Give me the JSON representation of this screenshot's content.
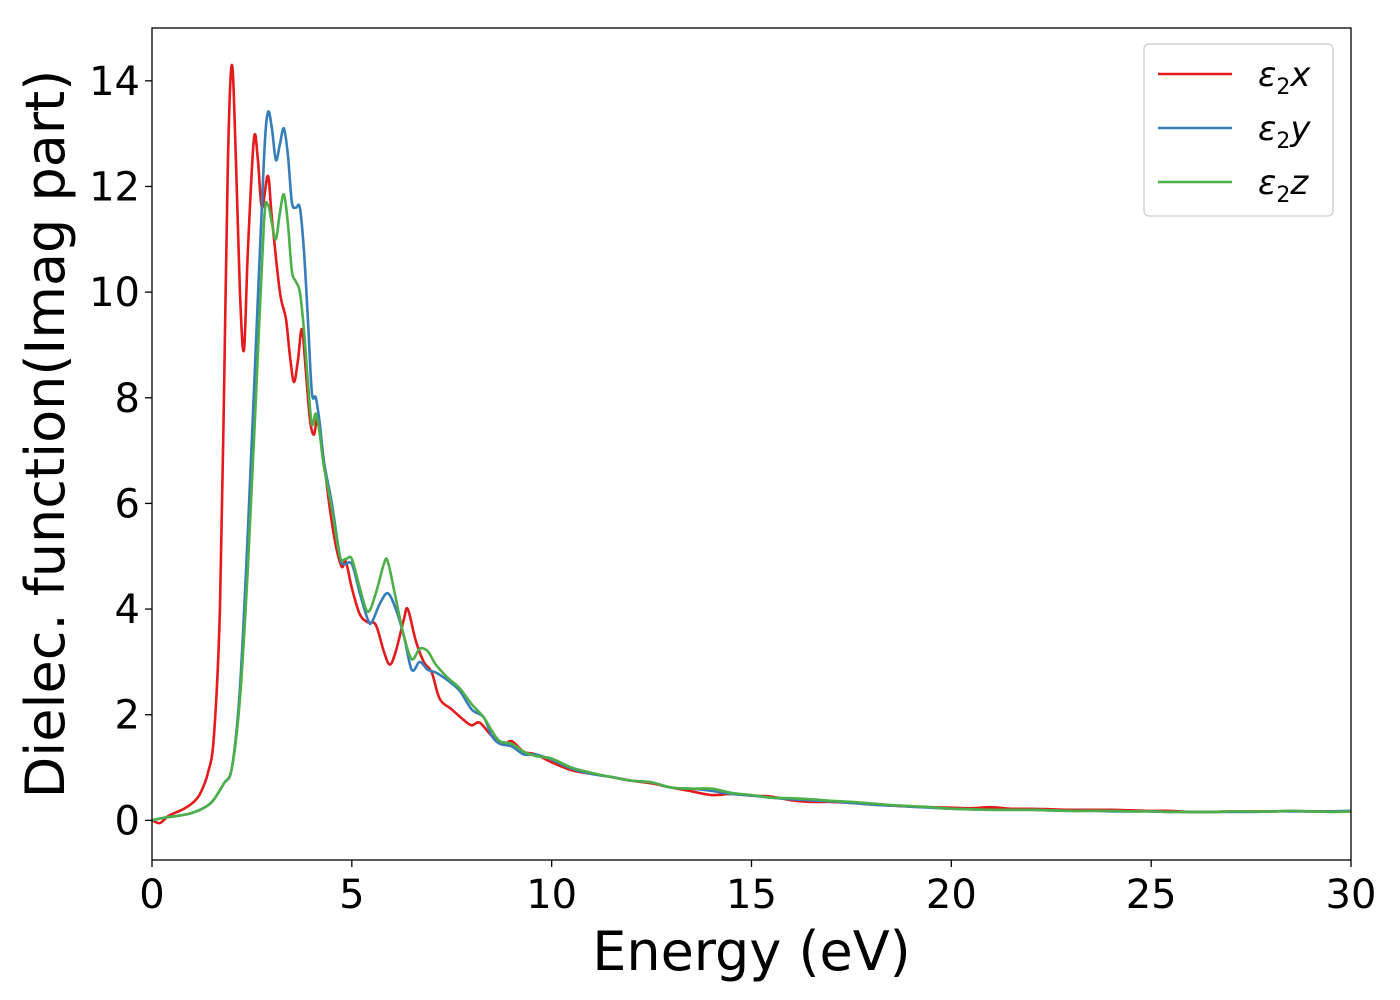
{
  "chart_data": {
    "type": "line",
    "title": "",
    "xlabel": "Energy (eV)",
    "ylabel": "Dielec. function(Imag part)",
    "xlim": [
      0,
      30
    ],
    "ylim": [
      -0.75,
      15
    ],
    "xticks": [
      0,
      5,
      10,
      15,
      20,
      25,
      30
    ],
    "yticks": [
      0,
      2,
      4,
      6,
      8,
      10,
      12,
      14
    ],
    "grid": false,
    "legend_position": "top-right",
    "series": [
      {
        "name": "ε2x",
        "legend": {
          "main": "ε",
          "sub": "2",
          "suffix": "x"
        },
        "color": "#e41a1c",
        "points": [
          [
            0,
            0
          ],
          [
            0.2,
            -0.05
          ],
          [
            0.4,
            0.08
          ],
          [
            0.6,
            0.15
          ],
          [
            0.8,
            0.22
          ],
          [
            1.0,
            0.32
          ],
          [
            1.2,
            0.5
          ],
          [
            1.4,
            0.9
          ],
          [
            1.55,
            1.6
          ],
          [
            1.7,
            4
          ],
          [
            1.8,
            8
          ],
          [
            1.9,
            12.5
          ],
          [
            2.0,
            14.3
          ],
          [
            2.1,
            12.5
          ],
          [
            2.2,
            10
          ],
          [
            2.3,
            8.9
          ],
          [
            2.4,
            10.8
          ],
          [
            2.55,
            12.9
          ],
          [
            2.65,
            12.5
          ],
          [
            2.75,
            11.6
          ],
          [
            2.9,
            12.2
          ],
          [
            3.0,
            11.4
          ],
          [
            3.2,
            10
          ],
          [
            3.35,
            9.5
          ],
          [
            3.45,
            8.8
          ],
          [
            3.55,
            8.3
          ],
          [
            3.65,
            8.7
          ],
          [
            3.75,
            9.3
          ],
          [
            3.85,
            8.5
          ],
          [
            3.95,
            7.6
          ],
          [
            4.05,
            7.3
          ],
          [
            4.15,
            7.6
          ],
          [
            4.3,
            6.8
          ],
          [
            4.45,
            5.9
          ],
          [
            4.6,
            5.2
          ],
          [
            4.75,
            4.8
          ],
          [
            4.85,
            4.9
          ],
          [
            5.0,
            4.4
          ],
          [
            5.2,
            3.9
          ],
          [
            5.4,
            3.75
          ],
          [
            5.6,
            3.7
          ],
          [
            5.8,
            3.2
          ],
          [
            5.95,
            2.95
          ],
          [
            6.1,
            3.2
          ],
          [
            6.3,
            3.8
          ],
          [
            6.4,
            4.0
          ],
          [
            6.6,
            3.4
          ],
          [
            6.8,
            3.0
          ],
          [
            7.0,
            2.8
          ],
          [
            7.2,
            2.3
          ],
          [
            7.5,
            2.1
          ],
          [
            7.8,
            1.9
          ],
          [
            8.0,
            1.8
          ],
          [
            8.2,
            1.85
          ],
          [
            8.5,
            1.6
          ],
          [
            8.8,
            1.45
          ],
          [
            9.0,
            1.5
          ],
          [
            9.3,
            1.3
          ],
          [
            9.6,
            1.25
          ],
          [
            10.0,
            1.1
          ],
          [
            10.5,
            0.95
          ],
          [
            11.0,
            0.88
          ],
          [
            11.5,
            0.82
          ],
          [
            12.0,
            0.75
          ],
          [
            12.5,
            0.7
          ],
          [
            13.0,
            0.62
          ],
          [
            13.5,
            0.55
          ],
          [
            14.0,
            0.48
          ],
          [
            14.5,
            0.5
          ],
          [
            15.0,
            0.47
          ],
          [
            15.5,
            0.45
          ],
          [
            16.0,
            0.38
          ],
          [
            16.5,
            0.35
          ],
          [
            17.0,
            0.35
          ],
          [
            17.5,
            0.33
          ],
          [
            18.0,
            0.3
          ],
          [
            18.5,
            0.28
          ],
          [
            19.0,
            0.26
          ],
          [
            19.5,
            0.25
          ],
          [
            20.0,
            0.24
          ],
          [
            20.5,
            0.23
          ],
          [
            21.0,
            0.25
          ],
          [
            21.5,
            0.22
          ],
          [
            22.0,
            0.22
          ],
          [
            22.5,
            0.21
          ],
          [
            23.0,
            0.2
          ],
          [
            23.5,
            0.2
          ],
          [
            24.0,
            0.2
          ],
          [
            24.5,
            0.19
          ],
          [
            25.0,
            0.18
          ],
          [
            25.5,
            0.18
          ],
          [
            26.0,
            0.16
          ],
          [
            26.5,
            0.16
          ],
          [
            27.0,
            0.17
          ],
          [
            27.5,
            0.17
          ],
          [
            28.0,
            0.17
          ],
          [
            28.5,
            0.18
          ],
          [
            29.0,
            0.17
          ],
          [
            29.5,
            0.17
          ],
          [
            30.0,
            0.17
          ]
        ]
      },
      {
        "name": "ε2y",
        "legend": {
          "main": "ε",
          "sub": "2",
          "suffix": "y"
        },
        "color": "#377eb8",
        "points": [
          [
            0,
            0
          ],
          [
            0.3,
            0.05
          ],
          [
            0.6,
            0.08
          ],
          [
            0.9,
            0.12
          ],
          [
            1.2,
            0.2
          ],
          [
            1.5,
            0.35
          ],
          [
            1.8,
            0.7
          ],
          [
            2.0,
            1.0
          ],
          [
            2.2,
            2.5
          ],
          [
            2.4,
            5.5
          ],
          [
            2.6,
            9
          ],
          [
            2.8,
            12.5
          ],
          [
            2.9,
            13.4
          ],
          [
            3.0,
            13.1
          ],
          [
            3.1,
            12.5
          ],
          [
            3.2,
            12.8
          ],
          [
            3.3,
            13.1
          ],
          [
            3.4,
            12.6
          ],
          [
            3.5,
            11.7
          ],
          [
            3.6,
            11.6
          ],
          [
            3.7,
            11.6
          ],
          [
            3.8,
            10.8
          ],
          [
            3.9,
            9.5
          ],
          [
            4.0,
            8.1
          ],
          [
            4.1,
            8.0
          ],
          [
            4.2,
            7.5
          ],
          [
            4.3,
            6.8
          ],
          [
            4.5,
            6.0
          ],
          [
            4.7,
            5.0
          ],
          [
            4.8,
            4.85
          ],
          [
            5.0,
            4.85
          ],
          [
            5.2,
            4.3
          ],
          [
            5.4,
            3.8
          ],
          [
            5.5,
            3.75
          ],
          [
            5.7,
            4.1
          ],
          [
            5.9,
            4.3
          ],
          [
            6.1,
            4.0
          ],
          [
            6.3,
            3.5
          ],
          [
            6.5,
            2.85
          ],
          [
            6.7,
            3.0
          ],
          [
            6.9,
            2.85
          ],
          [
            7.1,
            2.8
          ],
          [
            7.4,
            2.65
          ],
          [
            7.7,
            2.45
          ],
          [
            8.0,
            2.1
          ],
          [
            8.3,
            1.95
          ],
          [
            8.5,
            1.6
          ],
          [
            8.7,
            1.45
          ],
          [
            9.0,
            1.4
          ],
          [
            9.3,
            1.25
          ],
          [
            9.6,
            1.25
          ],
          [
            10.0,
            1.15
          ],
          [
            10.5,
            0.98
          ],
          [
            11.0,
            0.88
          ],
          [
            11.5,
            0.82
          ],
          [
            12.0,
            0.75
          ],
          [
            12.5,
            0.72
          ],
          [
            13.0,
            0.62
          ],
          [
            13.5,
            0.6
          ],
          [
            14.0,
            0.56
          ],
          [
            14.5,
            0.5
          ],
          [
            15.0,
            0.47
          ],
          [
            15.5,
            0.43
          ],
          [
            16.0,
            0.4
          ],
          [
            16.5,
            0.38
          ],
          [
            17.0,
            0.36
          ],
          [
            17.5,
            0.33
          ],
          [
            18.0,
            0.3
          ],
          [
            18.5,
            0.28
          ],
          [
            19.0,
            0.26
          ],
          [
            19.5,
            0.24
          ],
          [
            20.0,
            0.22
          ],
          [
            20.5,
            0.21
          ],
          [
            21.0,
            0.2
          ],
          [
            21.5,
            0.2
          ],
          [
            22.0,
            0.2
          ],
          [
            22.5,
            0.19
          ],
          [
            23.0,
            0.18
          ],
          [
            23.5,
            0.18
          ],
          [
            24.0,
            0.17
          ],
          [
            24.5,
            0.17
          ],
          [
            25.0,
            0.17
          ],
          [
            25.5,
            0.16
          ],
          [
            26.0,
            0.16
          ],
          [
            26.5,
            0.16
          ],
          [
            27.0,
            0.16
          ],
          [
            27.5,
            0.16
          ],
          [
            28.0,
            0.17
          ],
          [
            28.5,
            0.17
          ],
          [
            29.0,
            0.17
          ],
          [
            29.5,
            0.17
          ],
          [
            30.0,
            0.18
          ]
        ]
      },
      {
        "name": "ε2z",
        "legend": {
          "main": "ε",
          "sub": "2",
          "suffix": "z"
        },
        "color": "#4daf4a",
        "points": [
          [
            0,
            0
          ],
          [
            0.3,
            0.05
          ],
          [
            0.6,
            0.08
          ],
          [
            0.9,
            0.12
          ],
          [
            1.2,
            0.2
          ],
          [
            1.5,
            0.35
          ],
          [
            1.8,
            0.7
          ],
          [
            2.0,
            1.0
          ],
          [
            2.2,
            2.3
          ],
          [
            2.4,
            4.8
          ],
          [
            2.6,
            8
          ],
          [
            2.8,
            11.3
          ],
          [
            2.9,
            11.65
          ],
          [
            3.0,
            11.3
          ],
          [
            3.1,
            11.0
          ],
          [
            3.2,
            11.5
          ],
          [
            3.3,
            11.85
          ],
          [
            3.4,
            11.3
          ],
          [
            3.5,
            10.4
          ],
          [
            3.6,
            10.2
          ],
          [
            3.7,
            10.0
          ],
          [
            3.8,
            9.3
          ],
          [
            3.9,
            8.3
          ],
          [
            4.0,
            7.5
          ],
          [
            4.1,
            7.7
          ],
          [
            4.2,
            7.3
          ],
          [
            4.3,
            6.7
          ],
          [
            4.5,
            5.9
          ],
          [
            4.7,
            5.0
          ],
          [
            4.85,
            4.95
          ],
          [
            5.0,
            4.95
          ],
          [
            5.2,
            4.4
          ],
          [
            5.4,
            3.95
          ],
          [
            5.6,
            4.3
          ],
          [
            5.8,
            4.85
          ],
          [
            5.9,
            4.9
          ],
          [
            6.1,
            4.2
          ],
          [
            6.3,
            3.5
          ],
          [
            6.5,
            3.05
          ],
          [
            6.7,
            3.25
          ],
          [
            6.9,
            3.2
          ],
          [
            7.1,
            2.95
          ],
          [
            7.4,
            2.7
          ],
          [
            7.7,
            2.5
          ],
          [
            8.0,
            2.2
          ],
          [
            8.3,
            1.95
          ],
          [
            8.5,
            1.7
          ],
          [
            8.7,
            1.5
          ],
          [
            9.0,
            1.45
          ],
          [
            9.3,
            1.3
          ],
          [
            9.6,
            1.22
          ],
          [
            10.0,
            1.17
          ],
          [
            10.5,
            1.0
          ],
          [
            11.0,
            0.9
          ],
          [
            11.5,
            0.82
          ],
          [
            12.0,
            0.75
          ],
          [
            12.5,
            0.72
          ],
          [
            13.0,
            0.62
          ],
          [
            13.5,
            0.6
          ],
          [
            14.0,
            0.6
          ],
          [
            14.5,
            0.52
          ],
          [
            15.0,
            0.48
          ],
          [
            15.5,
            0.43
          ],
          [
            16.0,
            0.42
          ],
          [
            16.5,
            0.4
          ],
          [
            17.0,
            0.37
          ],
          [
            17.5,
            0.35
          ],
          [
            18.0,
            0.32
          ],
          [
            18.5,
            0.29
          ],
          [
            19.0,
            0.27
          ],
          [
            19.5,
            0.25
          ],
          [
            20.0,
            0.22
          ],
          [
            20.5,
            0.21
          ],
          [
            21.0,
            0.2
          ],
          [
            21.5,
            0.2
          ],
          [
            22.0,
            0.2
          ],
          [
            22.5,
            0.19
          ],
          [
            23.0,
            0.18
          ],
          [
            23.5,
            0.18
          ],
          [
            24.0,
            0.18
          ],
          [
            24.5,
            0.17
          ],
          [
            25.0,
            0.17
          ],
          [
            25.5,
            0.16
          ],
          [
            26.0,
            0.16
          ],
          [
            26.5,
            0.16
          ],
          [
            27.0,
            0.17
          ],
          [
            27.5,
            0.17
          ],
          [
            28.0,
            0.17
          ],
          [
            28.5,
            0.18
          ],
          [
            29.0,
            0.17
          ],
          [
            29.5,
            0.16
          ],
          [
            30.0,
            0.17
          ]
        ]
      }
    ]
  }
}
